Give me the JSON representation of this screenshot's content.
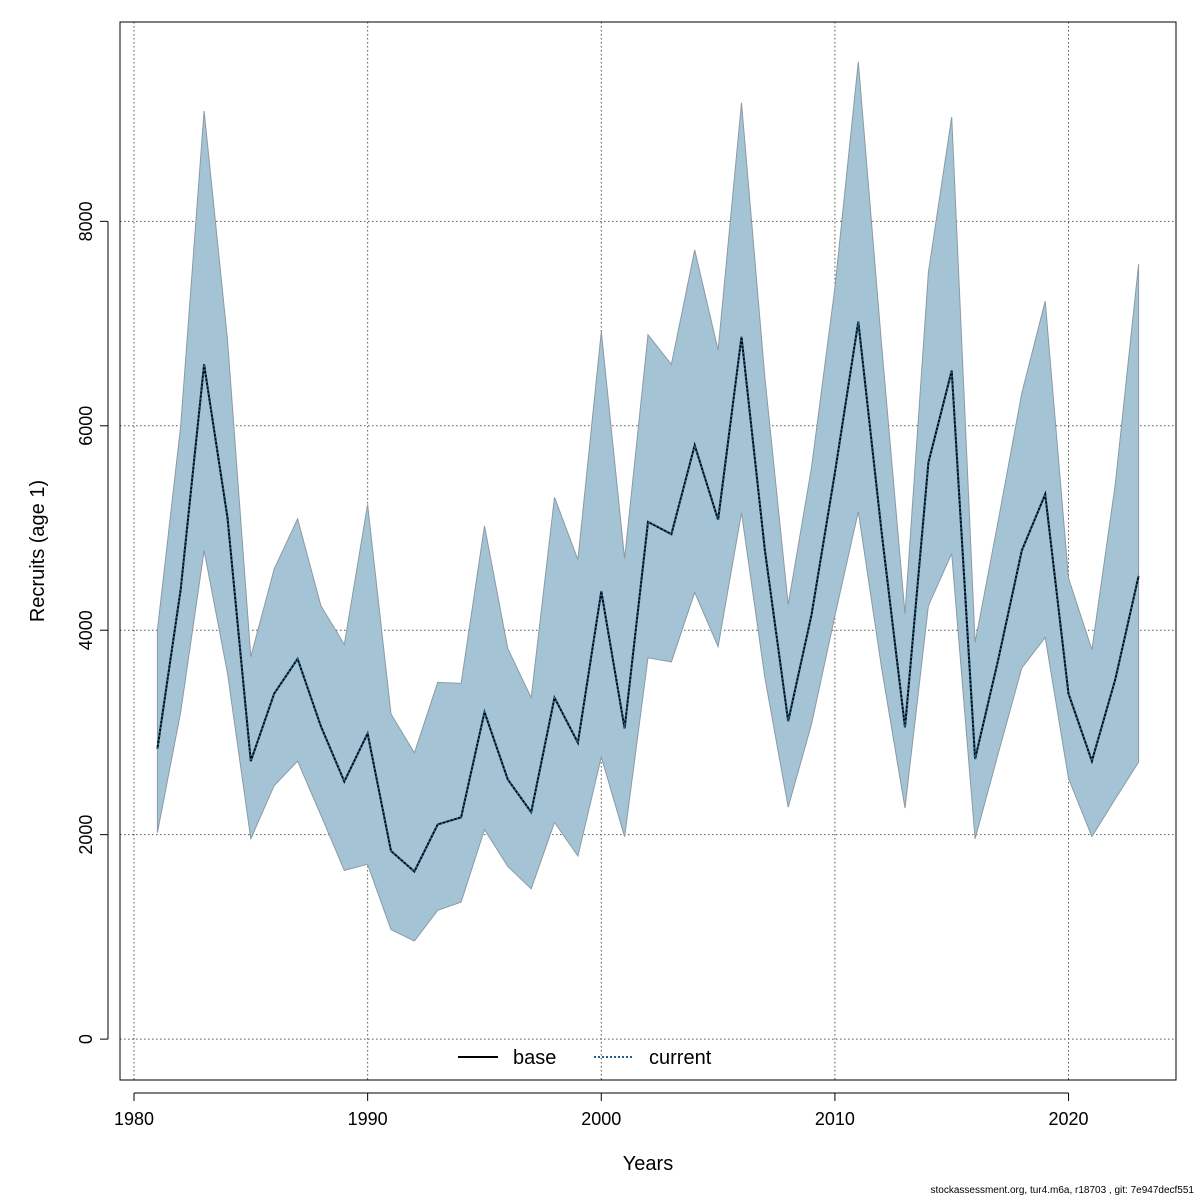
{
  "chart_data": {
    "type": "line",
    "title": "",
    "xlabel": "Years",
    "ylabel": "Recruits (age 1)",
    "xlim": [
      1979.4,
      2024.6
    ],
    "ylim": [
      -400,
      9950
    ],
    "x_ticks": [
      1980,
      1990,
      2000,
      2010,
      2020
    ],
    "y_ticks": [
      0,
      2000,
      4000,
      6000,
      8000
    ],
    "x_tick_labels": [
      "1980",
      "1990",
      "2000",
      "2010",
      "2020"
    ],
    "y_tick_labels": [
      "0",
      "2000",
      "4000",
      "6000",
      "8000"
    ],
    "grid": true,
    "legend_position": "bottom-center",
    "colors": {
      "band_fill": "#a4c4d6",
      "band_edge": "#8a9aa5",
      "base_line": "#000000",
      "current_line": "#1f5f86",
      "grid": "#555555"
    },
    "x": [
      1981,
      1982,
      1983,
      1984,
      1985,
      1986,
      1987,
      1988,
      1989,
      1990,
      1991,
      1992,
      1993,
      1994,
      1995,
      1996,
      1997,
      1998,
      1999,
      2000,
      2001,
      2002,
      2003,
      2004,
      2005,
      2006,
      2007,
      2008,
      2009,
      2010,
      2011,
      2012,
      2013,
      2014,
      2015,
      2016,
      2017,
      2018,
      2019,
      2020,
      2021,
      2022,
      2023
    ],
    "series": [
      {
        "name": "base",
        "style": "solid",
        "values": [
          2840,
          4400,
          6600,
          5100,
          2720,
          3380,
          3720,
          3060,
          2520,
          2990,
          1840,
          1640,
          2100,
          2170,
          3200,
          2540,
          2220,
          3340,
          2900,
          4380,
          3040,
          5060,
          4940,
          5810,
          5080,
          6870,
          4790,
          3110,
          4150,
          5540,
          7020,
          4960,
          3050,
          5640,
          6540,
          2740,
          3720,
          4780,
          5330,
          3380,
          2720,
          3520,
          4530
        ]
      },
      {
        "name": "current",
        "style": "dotted",
        "values": [
          2840,
          4400,
          6600,
          5100,
          2720,
          3380,
          3720,
          3060,
          2520,
          2990,
          1840,
          1640,
          2100,
          2170,
          3200,
          2540,
          2220,
          3340,
          2900,
          4380,
          3040,
          5060,
          4940,
          5810,
          5080,
          6870,
          4790,
          3110,
          4150,
          5540,
          7020,
          4960,
          3050,
          5640,
          6540,
          2740,
          3720,
          4780,
          5330,
          3380,
          2720,
          3520,
          4530
        ]
      }
    ],
    "confidence_band": {
      "lower": [
        2020,
        3200,
        4780,
        3580,
        1960,
        2480,
        2720,
        2190,
        1650,
        1710,
        1070,
        960,
        1260,
        1340,
        2050,
        1690,
        1470,
        2120,
        1790,
        2760,
        1980,
        3730,
        3690,
        4370,
        3840,
        5150,
        3540,
        2270,
        3080,
        4140,
        5160,
        3630,
        2260,
        4240,
        4750,
        1960,
        2800,
        3630,
        3930,
        2550,
        1980,
        2350,
        2710
      ],
      "upper": [
        4000,
        6000,
        9080,
        6840,
        3740,
        4600,
        5090,
        4240,
        3860,
        5230,
        3180,
        2800,
        3490,
        3480,
        5020,
        3820,
        3340,
        5300,
        4690,
        6920,
        4700,
        6890,
        6600,
        7720,
        6740,
        9160,
        6480,
        4250,
        5590,
        7350,
        9560,
        6790,
        4160,
        7500,
        9020,
        3880,
        5080,
        6320,
        7220,
        4510,
        3810,
        5430,
        7580
      ]
    },
    "legend": [
      "base",
      "current"
    ],
    "footer_note": "stockassessment.org, tur4.m6a, r18703 , git: 7e947decf551"
  }
}
